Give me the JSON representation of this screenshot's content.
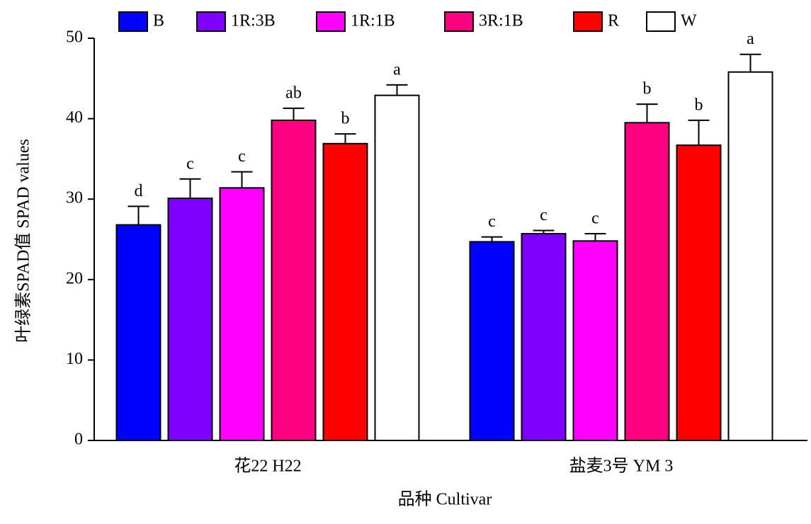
{
  "chart_data": {
    "type": "bar",
    "xlabel": "品种 Cultivar",
    "ylabel": "叶绿素SPAD值 SPAD values",
    "categories": [
      "花22 H22",
      "盐麦3号 YM 3"
    ],
    "series": [
      {
        "name": "B",
        "color": "#0000ff",
        "values": [
          26.8,
          24.7
        ],
        "errors": [
          2.3,
          0.6
        ],
        "letters": [
          "d",
          "c"
        ]
      },
      {
        "name": "1R:3B",
        "color": "#8000ff",
        "values": [
          30.1,
          25.7
        ],
        "errors": [
          2.4,
          0.4
        ],
        "letters": [
          "c",
          "c"
        ]
      },
      {
        "name": "1R:1B",
        "color": "#ff00ff",
        "values": [
          31.4,
          24.8
        ],
        "errors": [
          2.0,
          0.9
        ],
        "letters": [
          "c",
          "c"
        ]
      },
      {
        "name": "3R:1B",
        "color": "#ff0080",
        "values": [
          39.8,
          39.5
        ],
        "errors": [
          1.5,
          2.3
        ],
        "letters": [
          "ab",
          "b"
        ]
      },
      {
        "name": "R",
        "color": "#ff0000",
        "values": [
          36.9,
          36.7
        ],
        "errors": [
          1.2,
          3.1
        ],
        "letters": [
          "b",
          "b"
        ]
      },
      {
        "name": "W",
        "color": "#ffffff",
        "values": [
          42.9,
          45.8
        ],
        "errors": [
          1.3,
          2.2
        ],
        "letters": [
          "a",
          "a"
        ]
      }
    ],
    "ylim": [
      0,
      50
    ],
    "yticks": [
      0,
      10,
      20,
      30,
      40,
      50
    ],
    "legend": "top"
  }
}
